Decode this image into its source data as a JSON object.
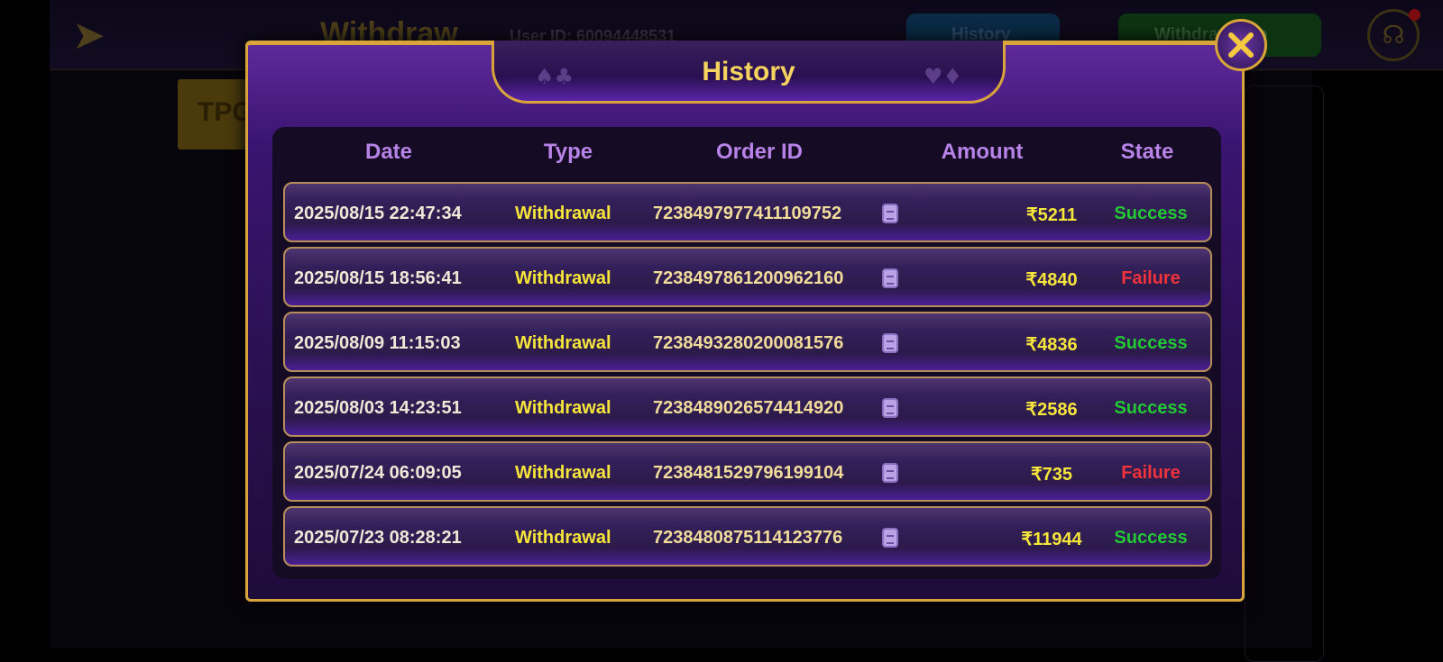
{
  "background": {
    "title": "Withdraw",
    "user_id": "User ID: 60094448531",
    "tabs": [
      {
        "label": "History",
        "icon": "history-list-icon"
      },
      {
        "label": "Withdraw Info",
        "icon": "id-card-icon"
      }
    ],
    "side_button": "TPG"
  },
  "modal": {
    "title": "History",
    "columns": [
      "Date",
      "Type",
      "Order ID",
      "Amount",
      "State"
    ],
    "rows": [
      {
        "date": "2025/08/15 22:47:34",
        "type": "Withdrawal",
        "order_id": "7238497977411109752",
        "amount": "₹5211",
        "state": "Success"
      },
      {
        "date": "2025/08/15 18:56:41",
        "type": "Withdrawal",
        "order_id": "7238497861200962160",
        "amount": "₹4840",
        "state": "Failure"
      },
      {
        "date": "2025/08/09 11:15:03",
        "type": "Withdrawal",
        "order_id": "7238493280200081576",
        "amount": "₹4836",
        "state": "Success"
      },
      {
        "date": "2025/08/03 14:23:51",
        "type": "Withdrawal",
        "order_id": "7238489026574414920",
        "amount": "₹2586",
        "state": "Success"
      },
      {
        "date": "2025/07/24 06:09:05",
        "type": "Withdrawal",
        "order_id": "7238481529796199104",
        "amount": "₹735",
        "state": "Failure"
      },
      {
        "date": "2025/07/23 08:28:21",
        "type": "Withdrawal",
        "order_id": "7238480875114123776",
        "amount": "₹11944",
        "state": "Success"
      }
    ]
  },
  "colors": {
    "success": "#22c934",
    "failure": "#f0323a",
    "gold": "#d9a53a",
    "header": "#b783e6"
  }
}
